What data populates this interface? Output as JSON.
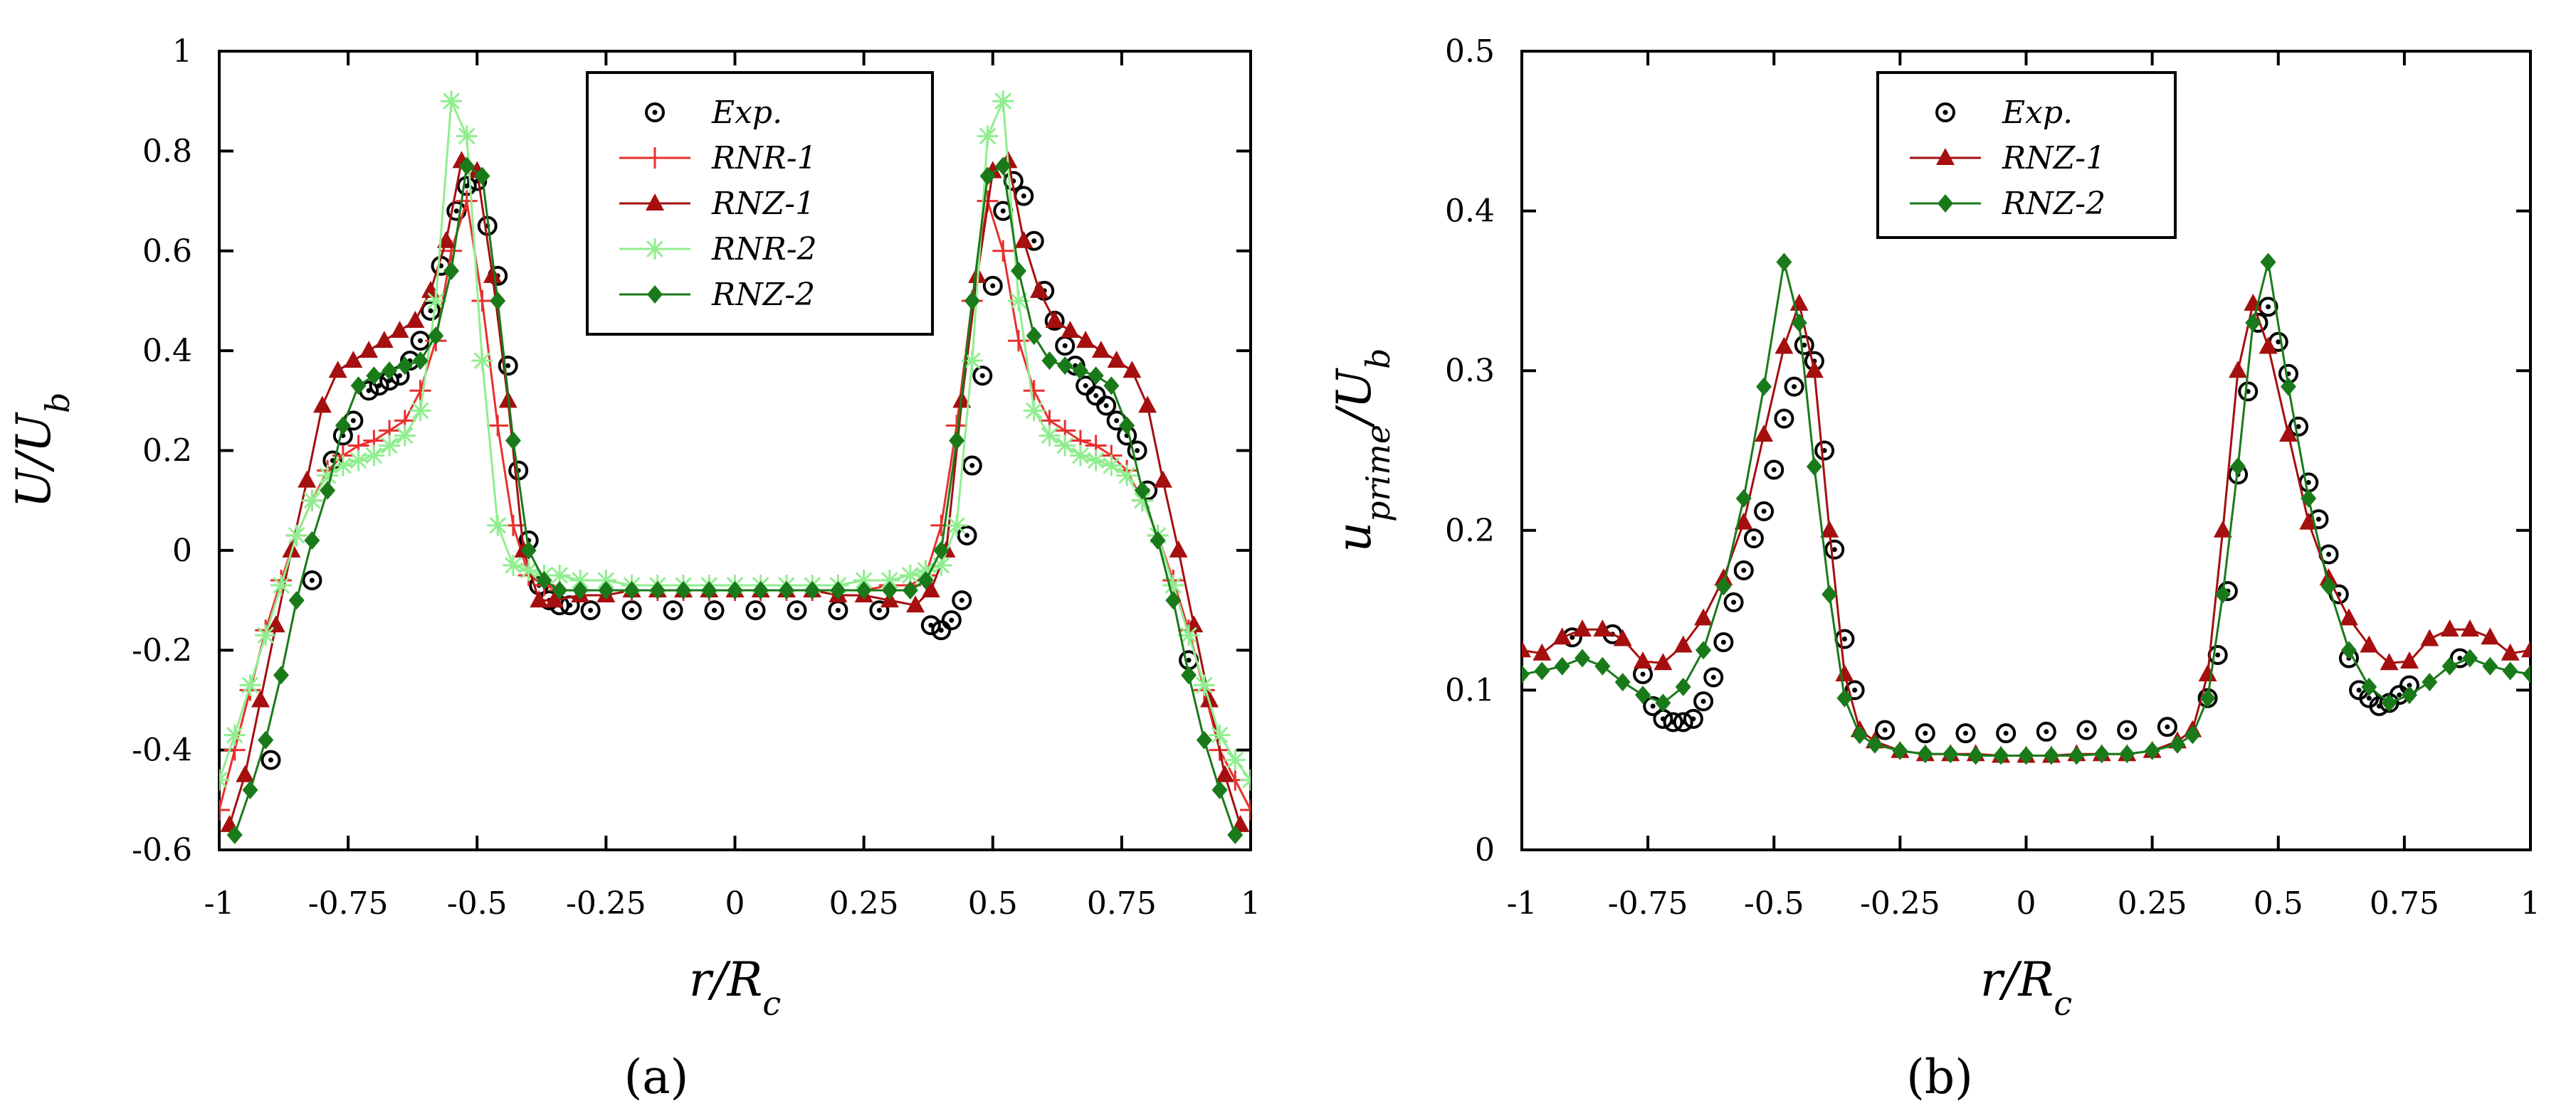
{
  "panel_labels": {
    "a": "(a)",
    "b": "(b)"
  },
  "chart_data": [
    {
      "type": "line",
      "panel": "(a)",
      "title": "",
      "xlabel": "r/R_c",
      "ylabel": "U/U_b",
      "xlim": [
        -1,
        1
      ],
      "ylim": [
        -0.6,
        1
      ],
      "xticks": [
        -1,
        -0.75,
        -0.5,
        -0.25,
        0,
        0.25,
        0.5,
        0.75,
        1
      ],
      "xtick_labels": [
        "-1",
        "-0.75",
        "-0.5",
        "-0.25",
        "0",
        "0.25",
        "0.5",
        "0.75",
        "1"
      ],
      "yticks": [
        -0.6,
        -0.4,
        -0.2,
        0,
        0.2,
        0.4,
        0.6,
        0.8,
        1
      ],
      "ytick_labels": [
        "-0.6",
        "-0.4",
        "-0.2",
        "0",
        "0.2",
        "0.4",
        "0.6",
        "0.8",
        "1"
      ],
      "legend_position": "top-center",
      "series": [
        {
          "name": "Exp.",
          "color": "#000000",
          "marker": "circle-dot",
          "line": false,
          "x": [
            -0.9,
            -0.82,
            -0.78,
            -0.76,
            -0.74,
            -0.71,
            -0.69,
            -0.67,
            -0.65,
            -0.63,
            -0.61,
            -0.59,
            -0.57,
            -0.54,
            -0.52,
            -0.5,
            -0.48,
            -0.46,
            -0.44,
            -0.42,
            -0.4,
            -0.38,
            -0.36,
            -0.34,
            -0.32,
            -0.28,
            -0.2,
            -0.12,
            -0.04,
            0.04,
            0.12,
            0.2,
            0.28,
            0.38,
            0.4,
            0.42,
            0.44,
            0.45,
            0.46,
            0.48,
            0.5,
            0.52,
            0.54,
            0.56,
            0.58,
            0.6,
            0.62,
            0.64,
            0.66,
            0.68,
            0.7,
            0.72,
            0.74,
            0.76,
            0.78,
            0.8,
            0.88
          ],
          "y": [
            -0.42,
            -0.06,
            0.18,
            0.23,
            0.26,
            0.32,
            0.33,
            0.34,
            0.35,
            0.38,
            0.42,
            0.48,
            0.57,
            0.68,
            0.73,
            0.74,
            0.65,
            0.55,
            0.37,
            0.16,
            0.02,
            -0.07,
            -0.1,
            -0.11,
            -0.11,
            -0.12,
            -0.12,
            -0.12,
            -0.12,
            -0.12,
            -0.12,
            -0.12,
            -0.12,
            -0.15,
            -0.16,
            -0.14,
            -0.1,
            0.03,
            0.17,
            0.35,
            0.53,
            0.68,
            0.74,
            0.71,
            0.62,
            0.52,
            0.46,
            0.41,
            0.37,
            0.33,
            0.31,
            0.29,
            0.26,
            0.23,
            0.2,
            0.12,
            -0.22
          ]
        },
        {
          "name": "RNR-1",
          "color": "#e8302e",
          "marker": "plus",
          "line": true,
          "x": [
            -1.0,
            -0.97,
            -0.94,
            -0.91,
            -0.88,
            -0.85,
            -0.82,
            -0.79,
            -0.76,
            -0.73,
            -0.7,
            -0.67,
            -0.64,
            -0.61,
            -0.58,
            -0.55,
            -0.52,
            -0.49,
            -0.46,
            -0.43,
            -0.4,
            -0.37,
            -0.34,
            -0.3,
            -0.25,
            -0.2,
            -0.15,
            -0.1,
            -0.05,
            0.0,
            0.05,
            0.1,
            0.15,
            0.2,
            0.25,
            0.3,
            0.34,
            0.37,
            0.4,
            0.43,
            0.46,
            0.49,
            0.52,
            0.55,
            0.58,
            0.61,
            0.64,
            0.67,
            0.7,
            0.73,
            0.76,
            0.79,
            0.82,
            0.85,
            0.88,
            0.91,
            0.94,
            0.97,
            1.0
          ],
          "y": [
            -0.52,
            -0.4,
            -0.28,
            -0.16,
            -0.06,
            0.03,
            0.1,
            0.16,
            0.19,
            0.21,
            0.22,
            0.24,
            0.26,
            0.32,
            0.42,
            0.6,
            0.7,
            0.5,
            0.25,
            0.05,
            -0.05,
            -0.07,
            -0.08,
            -0.08,
            -0.08,
            -0.08,
            -0.08,
            -0.08,
            -0.08,
            -0.08,
            -0.08,
            -0.08,
            -0.08,
            -0.08,
            -0.08,
            -0.07,
            -0.07,
            -0.05,
            0.05,
            0.25,
            0.5,
            0.7,
            0.6,
            0.42,
            0.32,
            0.26,
            0.24,
            0.22,
            0.21,
            0.19,
            0.16,
            0.1,
            0.03,
            -0.06,
            -0.16,
            -0.28,
            -0.4,
            -0.46,
            -0.52
          ]
        },
        {
          "name": "RNZ-1",
          "color": "#a50f0f",
          "marker": "triangle",
          "line": true,
          "x": [
            -0.98,
            -0.95,
            -0.92,
            -0.89,
            -0.86,
            -0.83,
            -0.8,
            -0.77,
            -0.74,
            -0.71,
            -0.68,
            -0.65,
            -0.62,
            -0.59,
            -0.56,
            -0.53,
            -0.5,
            -0.47,
            -0.44,
            -0.41,
            -0.38,
            -0.35,
            -0.3,
            -0.25,
            -0.2,
            -0.15,
            -0.1,
            -0.05,
            0.0,
            0.05,
            0.1,
            0.15,
            0.2,
            0.25,
            0.3,
            0.35,
            0.38,
            0.41,
            0.44,
            0.47,
            0.5,
            0.53,
            0.56,
            0.59,
            0.62,
            0.65,
            0.68,
            0.71,
            0.74,
            0.77,
            0.8,
            0.83,
            0.86,
            0.89,
            0.92,
            0.95,
            0.98
          ],
          "y": [
            -0.55,
            -0.45,
            -0.3,
            -0.15,
            0.0,
            0.14,
            0.29,
            0.36,
            0.38,
            0.4,
            0.42,
            0.44,
            0.46,
            0.52,
            0.62,
            0.78,
            0.76,
            0.55,
            0.3,
            0.0,
            -0.1,
            -0.1,
            -0.09,
            -0.09,
            -0.08,
            -0.08,
            -0.08,
            -0.08,
            -0.08,
            -0.08,
            -0.08,
            -0.08,
            -0.09,
            -0.09,
            -0.1,
            -0.11,
            -0.08,
            0.0,
            0.3,
            0.55,
            0.76,
            0.78,
            0.62,
            0.52,
            0.46,
            0.44,
            0.42,
            0.4,
            0.38,
            0.36,
            0.29,
            0.14,
            0.0,
            -0.15,
            -0.3,
            -0.45,
            -0.55
          ]
        },
        {
          "name": "RNR-2",
          "color": "#90ee90",
          "marker": "asterisk",
          "line": true,
          "x": [
            -1.0,
            -0.97,
            -0.94,
            -0.91,
            -0.88,
            -0.85,
            -0.82,
            -0.79,
            -0.76,
            -0.73,
            -0.7,
            -0.67,
            -0.64,
            -0.61,
            -0.58,
            -0.55,
            -0.52,
            -0.49,
            -0.46,
            -0.43,
            -0.4,
            -0.37,
            -0.34,
            -0.3,
            -0.25,
            -0.2,
            -0.15,
            -0.1,
            -0.05,
            0.0,
            0.05,
            0.1,
            0.15,
            0.2,
            0.25,
            0.3,
            0.34,
            0.37,
            0.4,
            0.43,
            0.46,
            0.49,
            0.52,
            0.55,
            0.58,
            0.61,
            0.64,
            0.67,
            0.7,
            0.73,
            0.76,
            0.79,
            0.82,
            0.85,
            0.88,
            0.91,
            0.94,
            0.97,
            1.0
          ],
          "y": [
            -0.46,
            -0.37,
            -0.27,
            -0.17,
            -0.07,
            0.03,
            0.1,
            0.15,
            0.17,
            0.18,
            0.19,
            0.21,
            0.23,
            0.28,
            0.5,
            0.9,
            0.83,
            0.38,
            0.05,
            -0.03,
            -0.04,
            -0.05,
            -0.05,
            -0.06,
            -0.06,
            -0.07,
            -0.07,
            -0.07,
            -0.07,
            -0.07,
            -0.07,
            -0.07,
            -0.07,
            -0.07,
            -0.06,
            -0.06,
            -0.05,
            -0.04,
            -0.03,
            0.05,
            0.38,
            0.83,
            0.9,
            0.5,
            0.28,
            0.23,
            0.21,
            0.19,
            0.18,
            0.17,
            0.15,
            0.1,
            0.03,
            -0.07,
            -0.17,
            -0.27,
            -0.37,
            -0.42,
            -0.46
          ]
        },
        {
          "name": "RNZ-2",
          "color": "#1a7a1a",
          "marker": "diamond",
          "line": true,
          "x": [
            -0.97,
            -0.94,
            -0.91,
            -0.88,
            -0.85,
            -0.82,
            -0.79,
            -0.76,
            -0.73,
            -0.7,
            -0.67,
            -0.64,
            -0.61,
            -0.58,
            -0.55,
            -0.52,
            -0.49,
            -0.46,
            -0.43,
            -0.4,
            -0.37,
            -0.34,
            -0.3,
            -0.25,
            -0.2,
            -0.15,
            -0.1,
            -0.05,
            0.0,
            0.05,
            0.1,
            0.15,
            0.2,
            0.25,
            0.3,
            0.34,
            0.37,
            0.4,
            0.43,
            0.46,
            0.49,
            0.52,
            0.55,
            0.58,
            0.61,
            0.64,
            0.67,
            0.7,
            0.73,
            0.76,
            0.79,
            0.82,
            0.85,
            0.88,
            0.91,
            0.94,
            0.97
          ],
          "y": [
            -0.57,
            -0.48,
            -0.38,
            -0.25,
            -0.1,
            0.02,
            0.12,
            0.25,
            0.33,
            0.35,
            0.36,
            0.37,
            0.38,
            0.43,
            0.56,
            0.77,
            0.75,
            0.5,
            0.22,
            0.0,
            -0.06,
            -0.08,
            -0.08,
            -0.08,
            -0.08,
            -0.08,
            -0.08,
            -0.08,
            -0.08,
            -0.08,
            -0.08,
            -0.08,
            -0.08,
            -0.08,
            -0.08,
            -0.08,
            -0.06,
            0.0,
            0.22,
            0.5,
            0.75,
            0.77,
            0.56,
            0.43,
            0.38,
            0.37,
            0.36,
            0.35,
            0.33,
            0.25,
            0.12,
            0.02,
            -0.1,
            -0.25,
            -0.38,
            -0.48,
            -0.57
          ]
        }
      ]
    },
    {
      "type": "line",
      "panel": "(b)",
      "title": "",
      "xlabel": "r/R_c",
      "ylabel": "u_prime/U_b",
      "xlim": [
        -1,
        1
      ],
      "ylim": [
        0,
        0.5
      ],
      "xticks": [
        -1,
        -0.75,
        -0.5,
        -0.25,
        0,
        0.25,
        0.5,
        0.75,
        1
      ],
      "xtick_labels": [
        "-1",
        "-0.75",
        "-0.5",
        "-0.25",
        "0",
        "0.25",
        "0.5",
        "0.75",
        "1"
      ],
      "yticks": [
        0,
        0.1,
        0.2,
        0.3,
        0.4,
        0.5
      ],
      "ytick_labels": [
        "0",
        "0.1",
        "0.2",
        "0.3",
        "0.4",
        "0.5"
      ],
      "legend_position": "top-center",
      "series": [
        {
          "name": "Exp.",
          "color": "#000000",
          "marker": "circle-dot",
          "line": false,
          "x": [
            -0.9,
            -0.82,
            -0.76,
            -0.74,
            -0.72,
            -0.7,
            -0.68,
            -0.66,
            -0.64,
            -0.62,
            -0.6,
            -0.58,
            -0.56,
            -0.54,
            -0.52,
            -0.5,
            -0.48,
            -0.46,
            -0.44,
            -0.42,
            -0.4,
            -0.38,
            -0.36,
            -0.34,
            -0.28,
            -0.2,
            -0.12,
            -0.04,
            0.04,
            0.12,
            0.2,
            0.28,
            0.36,
            0.38,
            0.4,
            0.42,
            0.44,
            0.46,
            0.48,
            0.5,
            0.52,
            0.54,
            0.56,
            0.58,
            0.6,
            0.62,
            0.64,
            0.66,
            0.68,
            0.7,
            0.72,
            0.74,
            0.76,
            0.86
          ],
          "y": [
            0.133,
            0.135,
            0.11,
            0.09,
            0.082,
            0.08,
            0.08,
            0.082,
            0.093,
            0.108,
            0.13,
            0.155,
            0.175,
            0.195,
            0.212,
            0.238,
            0.27,
            0.29,
            0.316,
            0.306,
            0.25,
            0.188,
            0.132,
            0.1,
            0.075,
            0.073,
            0.073,
            0.073,
            0.074,
            0.075,
            0.075,
            0.077,
            0.095,
            0.122,
            0.162,
            0.235,
            0.287,
            0.33,
            0.34,
            0.318,
            0.298,
            0.265,
            0.23,
            0.207,
            0.185,
            0.16,
            0.12,
            0.1,
            0.095,
            0.09,
            0.092,
            0.097,
            0.103,
            0.12
          ]
        },
        {
          "name": "RNZ-1",
          "color": "#a50f0f",
          "marker": "triangle",
          "line": true,
          "x": [
            -1.0,
            -0.96,
            -0.92,
            -0.88,
            -0.84,
            -0.8,
            -0.76,
            -0.72,
            -0.68,
            -0.64,
            -0.6,
            -0.56,
            -0.52,
            -0.48,
            -0.45,
            -0.42,
            -0.39,
            -0.36,
            -0.33,
            -0.3,
            -0.25,
            -0.2,
            -0.15,
            -0.1,
            -0.05,
            0.0,
            0.05,
            0.1,
            0.15,
            0.2,
            0.25,
            0.3,
            0.33,
            0.36,
            0.39,
            0.42,
            0.45,
            0.48,
            0.52,
            0.56,
            0.6,
            0.64,
            0.68,
            0.72,
            0.76,
            0.8,
            0.84,
            0.88,
            0.92,
            0.96,
            1.0
          ],
          "y": [
            0.125,
            0.123,
            0.133,
            0.138,
            0.138,
            0.132,
            0.118,
            0.117,
            0.128,
            0.145,
            0.17,
            0.205,
            0.26,
            0.315,
            0.342,
            0.3,
            0.2,
            0.11,
            0.075,
            0.068,
            0.062,
            0.06,
            0.06,
            0.06,
            0.059,
            0.059,
            0.059,
            0.06,
            0.06,
            0.06,
            0.062,
            0.068,
            0.075,
            0.11,
            0.2,
            0.3,
            0.342,
            0.315,
            0.26,
            0.205,
            0.17,
            0.145,
            0.128,
            0.117,
            0.118,
            0.132,
            0.138,
            0.138,
            0.133,
            0.123,
            0.125
          ]
        },
        {
          "name": "RNZ-2",
          "color": "#1a7a1a",
          "marker": "diamond",
          "line": true,
          "x": [
            -1.0,
            -0.96,
            -0.92,
            -0.88,
            -0.84,
            -0.8,
            -0.76,
            -0.72,
            -0.68,
            -0.64,
            -0.6,
            -0.56,
            -0.52,
            -0.48,
            -0.45,
            -0.42,
            -0.39,
            -0.36,
            -0.33,
            -0.3,
            -0.25,
            -0.2,
            -0.15,
            -0.1,
            -0.05,
            0.0,
            0.05,
            0.1,
            0.15,
            0.2,
            0.25,
            0.3,
            0.33,
            0.36,
            0.39,
            0.42,
            0.45,
            0.48,
            0.52,
            0.56,
            0.6,
            0.64,
            0.68,
            0.72,
            0.76,
            0.8,
            0.84,
            0.88,
            0.92,
            0.96,
            1.0
          ],
          "y": [
            0.11,
            0.112,
            0.115,
            0.12,
            0.115,
            0.105,
            0.097,
            0.092,
            0.102,
            0.125,
            0.165,
            0.22,
            0.29,
            0.368,
            0.33,
            0.24,
            0.16,
            0.095,
            0.072,
            0.066,
            0.062,
            0.06,
            0.06,
            0.059,
            0.059,
            0.059,
            0.059,
            0.059,
            0.06,
            0.06,
            0.062,
            0.066,
            0.072,
            0.095,
            0.16,
            0.24,
            0.33,
            0.368,
            0.29,
            0.22,
            0.165,
            0.125,
            0.102,
            0.092,
            0.097,
            0.105,
            0.115,
            0.12,
            0.115,
            0.112,
            0.11
          ]
        }
      ]
    }
  ]
}
